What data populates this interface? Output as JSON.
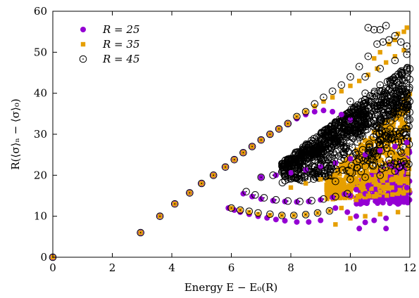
{
  "chart_data": {
    "type": "scatter",
    "xlabel": "Energy E − E₀(R)",
    "ylabel": "R(⟨σ⟩ₙ − ⟨σ⟩₀)",
    "xlim": [
      0,
      12
    ],
    "ylim": [
      0,
      60
    ],
    "x_ticks": [
      0,
      2,
      4,
      6,
      8,
      10,
      12
    ],
    "y_ticks": [
      0,
      10,
      20,
      30,
      40,
      50,
      60
    ],
    "grid": false,
    "legend_position": "top-left",
    "series": [
      {
        "name": "R = 25",
        "marker": "filled-circle",
        "color": "#9400d3",
        "points": [
          [
            0,
            0
          ],
          [
            2.95,
            6
          ],
          [
            3.6,
            10
          ],
          [
            4.1,
            13
          ],
          [
            4.6,
            15.7
          ],
          [
            5.0,
            18
          ],
          [
            5.4,
            20
          ],
          [
            5.8,
            22
          ],
          [
            6.1,
            23.8
          ],
          [
            6.4,
            25.5
          ],
          [
            6.7,
            27
          ],
          [
            7.0,
            28.6
          ],
          [
            7.3,
            30
          ],
          [
            7.6,
            31.3
          ],
          [
            7.9,
            32.6
          ],
          [
            8.2,
            33.8
          ],
          [
            8.5,
            34.8
          ],
          [
            8.8,
            35.5
          ],
          [
            9.1,
            35.8
          ],
          [
            9.4,
            35.5
          ],
          [
            9.7,
            34.8
          ],
          [
            10.0,
            33.5
          ],
          [
            5.9,
            12
          ],
          [
            6.1,
            11.5
          ],
          [
            6.3,
            11
          ],
          [
            6.6,
            10.5
          ],
          [
            6.9,
            10
          ],
          [
            7.2,
            9.6
          ],
          [
            7.5,
            9.2
          ],
          [
            7.8,
            8.9
          ],
          [
            8.2,
            8.6
          ],
          [
            8.6,
            8.6
          ],
          [
            9.0,
            9.0
          ],
          [
            6.4,
            15.5
          ],
          [
            6.7,
            14.8
          ],
          [
            7.0,
            14.2
          ],
          [
            7.4,
            13.8
          ],
          [
            7.8,
            13.6
          ],
          [
            8.2,
            13.5
          ],
          [
            8.6,
            13.6
          ],
          [
            9.0,
            14
          ],
          [
            9.4,
            14.6
          ],
          [
            9.8,
            15.4
          ],
          [
            10.2,
            16.5
          ],
          [
            10.6,
            17.5
          ],
          [
            7.0,
            19.5
          ],
          [
            7.5,
            20
          ],
          [
            8.0,
            20.6
          ],
          [
            8.5,
            21.3
          ],
          [
            9.0,
            22
          ],
          [
            9.5,
            23
          ],
          [
            10.0,
            24
          ],
          [
            10.5,
            25
          ],
          [
            11.0,
            26
          ],
          [
            11.5,
            27
          ],
          [
            11.9,
            28
          ],
          [
            9.5,
            12
          ],
          [
            9.9,
            11
          ],
          [
            10.2,
            10
          ],
          [
            10.5,
            8.5
          ],
          [
            10.8,
            9
          ],
          [
            11.2,
            9.5
          ],
          [
            11.6,
            13
          ],
          [
            11.9,
            14.5
          ],
          [
            10.3,
            7
          ],
          [
            11.2,
            7
          ],
          [
            11.8,
            14
          ],
          [
            10.0,
            15
          ],
          [
            10.5,
            15.5
          ],
          [
            11.0,
            16
          ],
          [
            11.5,
            16.5
          ],
          [
            11.9,
            17
          ]
        ]
      },
      {
        "name": "R = 35",
        "marker": "filled-square",
        "color": "#e69f00",
        "points": [
          [
            0,
            0
          ],
          [
            2.95,
            6
          ],
          [
            3.6,
            10
          ],
          [
            4.1,
            13
          ],
          [
            4.6,
            15.7
          ],
          [
            5.0,
            18
          ],
          [
            5.4,
            20
          ],
          [
            5.8,
            22
          ],
          [
            6.1,
            23.8
          ],
          [
            6.4,
            25.5
          ],
          [
            6.7,
            27
          ],
          [
            7.0,
            28.6
          ],
          [
            7.3,
            30
          ],
          [
            7.6,
            31.3
          ],
          [
            7.9,
            32.6
          ],
          [
            8.2,
            34.3
          ],
          [
            8.5,
            35.5
          ],
          [
            8.8,
            36.8
          ],
          [
            9.1,
            38
          ],
          [
            9.4,
            39
          ],
          [
            9.7,
            40.5
          ],
          [
            10.0,
            41.8
          ],
          [
            10.3,
            43
          ],
          [
            10.6,
            44.5
          ],
          [
            10.9,
            46
          ],
          [
            11.2,
            47.5
          ],
          [
            11.5,
            49
          ],
          [
            11.8,
            50.5
          ],
          [
            11.9,
            56
          ],
          [
            11.8,
            55
          ],
          [
            11.6,
            54.5
          ],
          [
            11.5,
            53
          ],
          [
            11.3,
            52
          ],
          [
            11.0,
            50
          ],
          [
            10.8,
            48.5
          ],
          [
            6.0,
            12
          ],
          [
            6.3,
            11.5
          ],
          [
            6.6,
            11
          ],
          [
            6.9,
            10.5
          ],
          [
            7.3,
            10.3
          ],
          [
            7.7,
            10.2
          ],
          [
            8.1,
            10.2
          ],
          [
            8.5,
            10.4
          ],
          [
            8.9,
            10.8
          ],
          [
            9.3,
            11.3
          ],
          [
            9.7,
            12
          ],
          [
            9.5,
            8
          ],
          [
            10.0,
            9.5
          ],
          [
            10.5,
            10
          ],
          [
            11.0,
            10.5
          ],
          [
            11.6,
            11
          ],
          [
            10.2,
            14
          ],
          [
            10.6,
            15
          ],
          [
            11.0,
            16
          ],
          [
            11.4,
            17
          ],
          [
            11.8,
            18.5
          ],
          [
            8.0,
            17
          ],
          [
            8.5,
            18
          ],
          [
            9.0,
            19
          ],
          [
            9.5,
            20
          ],
          [
            10.0,
            21
          ],
          [
            10.5,
            22
          ],
          [
            11.0,
            23.5
          ],
          [
            11.5,
            24.5
          ],
          [
            11.9,
            26
          ]
        ]
      },
      {
        "name": "R = 45",
        "marker": "open-circle",
        "color": "#000000",
        "points": [
          [
            0,
            0
          ],
          [
            2.95,
            6
          ],
          [
            3.6,
            10
          ],
          [
            4.1,
            13
          ],
          [
            4.6,
            15.7
          ],
          [
            5.0,
            18
          ],
          [
            5.4,
            20
          ],
          [
            5.8,
            22
          ],
          [
            6.1,
            23.8
          ],
          [
            6.4,
            25.5
          ],
          [
            6.7,
            27
          ],
          [
            7.0,
            28.6
          ],
          [
            7.3,
            30
          ],
          [
            7.6,
            31.3
          ],
          [
            7.9,
            32.6
          ],
          [
            8.2,
            34.3
          ],
          [
            8.5,
            35.5
          ],
          [
            8.8,
            37.4
          ],
          [
            9.1,
            39
          ],
          [
            9.4,
            40.5
          ],
          [
            9.7,
            42
          ],
          [
            10.0,
            44
          ],
          [
            10.3,
            46.5
          ],
          [
            10.6,
            49
          ],
          [
            10.9,
            52
          ],
          [
            11.1,
            52.5
          ],
          [
            11.3,
            53
          ],
          [
            10.6,
            56
          ],
          [
            10.8,
            55.5
          ],
          [
            11.0,
            55.5
          ],
          [
            11.2,
            56.5
          ],
          [
            11.5,
            54
          ],
          [
            11.7,
            52.5
          ],
          [
            11.9,
            51.5
          ],
          [
            6.0,
            12
          ],
          [
            6.3,
            11.5
          ],
          [
            6.6,
            11.2
          ],
          [
            6.9,
            10.8
          ],
          [
            7.3,
            10.5
          ],
          [
            7.7,
            10.2
          ],
          [
            8.1,
            10.2
          ],
          [
            8.5,
            10.4
          ],
          [
            8.9,
            10.8
          ],
          [
            9.3,
            11.3
          ],
          [
            6.5,
            16
          ],
          [
            6.8,
            15.2
          ],
          [
            7.1,
            14.5
          ],
          [
            7.5,
            14
          ],
          [
            7.9,
            13.7
          ],
          [
            8.3,
            13.6
          ],
          [
            8.7,
            13.8
          ],
          [
            9.1,
            14.2
          ],
          [
            9.5,
            14.8
          ],
          [
            9.9,
            15.5
          ],
          [
            7.0,
            19.5
          ],
          [
            7.4,
            20
          ],
          [
            7.8,
            20.5
          ],
          [
            8.2,
            21
          ],
          [
            8.6,
            21.6
          ],
          [
            9.0,
            22.3
          ],
          [
            9.4,
            23
          ],
          [
            9.8,
            24
          ],
          [
            10.2,
            25
          ],
          [
            10.6,
            26
          ],
          [
            11.0,
            27.5
          ],
          [
            11.4,
            29
          ],
          [
            11.8,
            30.5
          ],
          [
            8.5,
            25
          ],
          [
            9.0,
            26.5
          ],
          [
            9.5,
            28
          ],
          [
            10.0,
            29.5
          ],
          [
            10.5,
            31
          ],
          [
            11.0,
            32.5
          ],
          [
            11.5,
            34
          ],
          [
            11.9,
            35.5
          ],
          [
            9.5,
            33
          ],
          [
            10.0,
            34
          ],
          [
            10.5,
            35.5
          ],
          [
            11.0,
            37
          ],
          [
            11.5,
            38.5
          ],
          [
            11.9,
            40
          ],
          [
            10.0,
            38
          ],
          [
            10.5,
            40
          ],
          [
            11.0,
            42
          ],
          [
            11.5,
            44
          ],
          [
            11.9,
            46
          ],
          [
            10.5,
            44
          ],
          [
            11.0,
            46
          ],
          [
            11.5,
            48
          ],
          [
            11.9,
            49.5
          ],
          [
            9.5,
            18.5
          ],
          [
            10.0,
            19
          ],
          [
            10.5,
            19.5
          ],
          [
            11.0,
            20
          ],
          [
            11.5,
            21
          ],
          [
            11.9,
            22
          ]
        ]
      }
    ],
    "dense_clusters": [
      {
        "series": "R = 45",
        "x_range": [
          7.6,
          12
        ],
        "y_range": [
          18,
          48
        ],
        "description_free": true
      }
    ]
  }
}
